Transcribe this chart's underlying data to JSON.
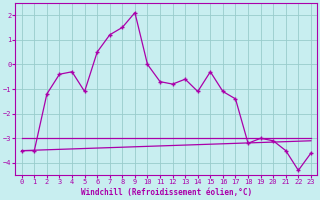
{
  "xlabel": "Windchill (Refroidissement éolien,°C)",
  "background_color": "#c8eef0",
  "grid_color": "#99cccc",
  "line_color": "#aa00aa",
  "xlim": [
    -0.5,
    23.5
  ],
  "ylim": [
    -4.5,
    2.5
  ],
  "yticks": [
    -4,
    -3,
    -2,
    -1,
    0,
    1,
    2
  ],
  "xticks": [
    0,
    1,
    2,
    3,
    4,
    5,
    6,
    7,
    8,
    9,
    10,
    11,
    12,
    13,
    14,
    15,
    16,
    17,
    18,
    19,
    20,
    21,
    22,
    23
  ],
  "series1_x": [
    0,
    1,
    2,
    3,
    4,
    5,
    6,
    7,
    8,
    9,
    10,
    11,
    12,
    13,
    14,
    15,
    16,
    17,
    18,
    19,
    20,
    21,
    22,
    23
  ],
  "series1_y": [
    -3.5,
    -3.5,
    -1.2,
    -0.4,
    -0.3,
    -1.1,
    0.5,
    1.2,
    1.5,
    2.1,
    0.0,
    -0.7,
    -0.8,
    -0.6,
    -1.1,
    -0.3,
    -1.1,
    -1.4,
    -3.2,
    -3.0,
    -3.1,
    -3.5,
    -4.3,
    -3.6
  ],
  "series2_x": [
    0,
    23
  ],
  "series2_y": [
    -3.5,
    -3.1
  ],
  "series3_x": [
    0,
    23
  ],
  "series3_y": [
    -3.0,
    -3.0
  ],
  "xlabel_fontsize": 5.5,
  "tick_fontsize": 5,
  "linewidth": 0.9,
  "marker_size": 3
}
